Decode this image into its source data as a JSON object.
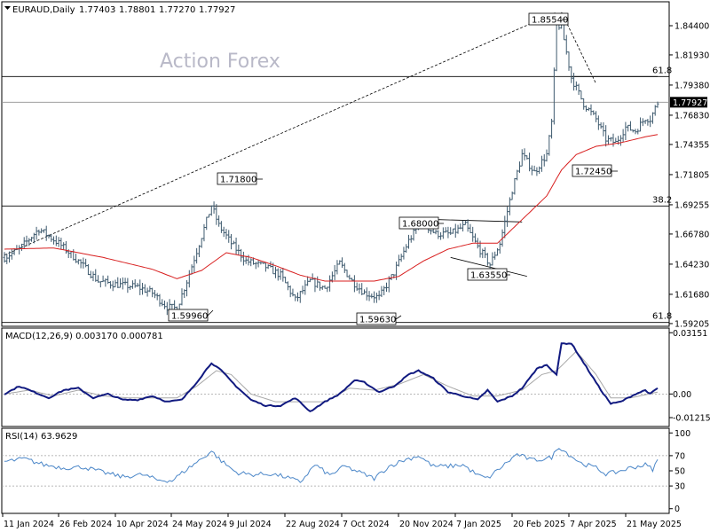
{
  "chart_data": [
    {
      "type": "ohlc",
      "title": "EURAUD,Daily",
      "ohlc_header": [
        "1.77403",
        "1.78801",
        "1.77270",
        "1.77927"
      ],
      "watermark": "Action Forex",
      "last_price": "1.77927",
      "ylim": [
        1.5905,
        1.8635
      ],
      "y_ticks": [
        "1.84400",
        "1.81930",
        "1.79380",
        "1.76830",
        "1.74355",
        "1.71805",
        "1.69255",
        "1.66780",
        "1.64230",
        "1.61680",
        "1.59205"
      ],
      "x_ticks": [
        "11 Jan 2024",
        "26 Feb 2024",
        "10 Apr 2024",
        "24 May 2024",
        "9 Jul 2024",
        "22 Aug 2024",
        "7 Oct 2024",
        "20 Nov 2024",
        "7 Jan 2025",
        "20 Feb 2025",
        "7 Apr 2025",
        "21 May 2025"
      ],
      "fib_levels": [
        {
          "label": "61.8",
          "value": 1.801
        },
        {
          "label": "38.2",
          "value": 1.6915
        },
        {
          "label": "61.8",
          "value": 1.593
        }
      ],
      "price_labels": [
        {
          "text": "1.85540",
          "value": 1.8554
        },
        {
          "text": "1.71800",
          "value": 1.718
        },
        {
          "text": "1.68000",
          "value": 1.68
        },
        {
          "text": "1.63550",
          "value": 1.6355
        },
        {
          "text": "1.59960",
          "value": 1.5996
        },
        {
          "text": "1.59630",
          "value": 1.5963
        },
        {
          "text": "1.72450",
          "value": 1.7245
        }
      ],
      "anchors": [
        [
          0,
          1.648
        ],
        [
          6,
          1.655
        ],
        [
          14,
          1.672
        ],
        [
          22,
          1.66
        ],
        [
          30,
          1.645
        ],
        [
          38,
          1.628
        ],
        [
          46,
          1.625
        ],
        [
          54,
          1.623
        ],
        [
          60,
          1.618
        ],
        [
          66,
          1.606
        ],
        [
          70,
          1.605
        ],
        [
          74,
          1.628
        ],
        [
          80,
          1.666
        ],
        [
          84,
          1.692
        ],
        [
          87,
          1.675
        ],
        [
          92,
          1.66
        ],
        [
          98,
          1.645
        ],
        [
          106,
          1.64
        ],
        [
          112,
          1.633
        ],
        [
          118,
          1.612
        ],
        [
          124,
          1.628
        ],
        [
          130,
          1.622
        ],
        [
          136,
          1.643
        ],
        [
          141,
          1.628
        ],
        [
          146,
          1.618
        ],
        [
          152,
          1.614
        ],
        [
          158,
          1.635
        ],
        [
          164,
          1.662
        ],
        [
          169,
          1.678
        ],
        [
          175,
          1.668
        ],
        [
          181,
          1.668
        ],
        [
          187,
          1.675
        ],
        [
          192,
          1.657
        ],
        [
          197,
          1.642
        ],
        [
          201,
          1.66
        ],
        [
          206,
          1.705
        ],
        [
          210,
          1.735
        ],
        [
          215,
          1.72
        ],
        [
          220,
          1.735
        ],
        [
          222,
          1.762
        ],
        [
          224,
          1.845
        ],
        [
          226,
          1.843
        ],
        [
          230,
          1.8
        ],
        [
          235,
          1.778
        ],
        [
          240,
          1.765
        ],
        [
          244,
          1.748
        ],
        [
          248,
          1.745
        ],
        [
          252,
          1.758
        ],
        [
          256,
          1.755
        ],
        [
          260,
          1.766
        ],
        [
          262,
          1.765
        ],
        [
          265,
          1.779
        ]
      ],
      "ma_anchors": [
        [
          0,
          1.655
        ],
        [
          20,
          1.656
        ],
        [
          40,
          1.648
        ],
        [
          60,
          1.638
        ],
        [
          70,
          1.63
        ],
        [
          80,
          1.637
        ],
        [
          90,
          1.652
        ],
        [
          100,
          1.648
        ],
        [
          110,
          1.641
        ],
        [
          120,
          1.633
        ],
        [
          130,
          1.628
        ],
        [
          140,
          1.628
        ],
        [
          150,
          1.628
        ],
        [
          160,
          1.632
        ],
        [
          170,
          1.645
        ],
        [
          180,
          1.655
        ],
        [
          190,
          1.66
        ],
        [
          200,
          1.66
        ],
        [
          210,
          1.68
        ],
        [
          220,
          1.7
        ],
        [
          226,
          1.722
        ],
        [
          232,
          1.735
        ],
        [
          240,
          1.742
        ],
        [
          250,
          1.745
        ],
        [
          260,
          1.75
        ],
        [
          265,
          1.752
        ]
      ]
    },
    {
      "type": "line",
      "title": "MACD(12,26,9) 0.003170 0.000781",
      "ylim": [
        -0.01625,
        0.03345
      ],
      "y_ticks": [
        "0.03151",
        "0.00",
        "-0.01215"
      ],
      "macd_anchors": [
        [
          0,
          0.0
        ],
        [
          6,
          0.004
        ],
        [
          12,
          0.001
        ],
        [
          18,
          -0.002
        ],
        [
          24,
          0.002
        ],
        [
          30,
          0.003
        ],
        [
          36,
          -0.002
        ],
        [
          42,
          0.0
        ],
        [
          48,
          -0.003
        ],
        [
          54,
          -0.003
        ],
        [
          60,
          -0.001
        ],
        [
          66,
          -0.004
        ],
        [
          72,
          -0.003
        ],
        [
          78,
          0.006
        ],
        [
          84,
          0.016
        ],
        [
          88,
          0.012
        ],
        [
          94,
          0.004
        ],
        [
          100,
          -0.003
        ],
        [
          106,
          -0.006
        ],
        [
          112,
          -0.006
        ],
        [
          118,
          -0.002
        ],
        [
          124,
          -0.009
        ],
        [
          130,
          -0.004
        ],
        [
          136,
          0.0
        ],
        [
          142,
          0.007
        ],
        [
          146,
          0.006
        ],
        [
          152,
          0.001
        ],
        [
          158,
          0.004
        ],
        [
          164,
          0.01
        ],
        [
          168,
          0.012
        ],
        [
          174,
          0.008
        ],
        [
          180,
          0.001
        ],
        [
          186,
          -0.001
        ],
        [
          192,
          -0.003
        ],
        [
          196,
          0.002
        ],
        [
          200,
          -0.004
        ],
        [
          206,
          -0.001
        ],
        [
          210,
          0.003
        ],
        [
          216,
          0.013
        ],
        [
          220,
          0.015
        ],
        [
          224,
          0.01
        ],
        [
          226,
          0.026
        ],
        [
          230,
          0.026
        ],
        [
          236,
          0.014
        ],
        [
          242,
          0.002
        ],
        [
          246,
          -0.005
        ],
        [
          250,
          -0.004
        ],
        [
          256,
          0.0
        ],
        [
          260,
          0.002
        ],
        [
          262,
          0.0
        ],
        [
          265,
          0.003
        ]
      ],
      "signal_anchors": [
        [
          0,
          0.0
        ],
        [
          10,
          0.002
        ],
        [
          20,
          -0.001
        ],
        [
          30,
          0.002
        ],
        [
          40,
          -0.001
        ],
        [
          50,
          -0.002
        ],
        [
          60,
          -0.002
        ],
        [
          70,
          -0.002
        ],
        [
          78,
          0.004
        ],
        [
          86,
          0.012
        ],
        [
          92,
          0.01
        ],
        [
          100,
          0.0
        ],
        [
          110,
          -0.004
        ],
        [
          120,
          -0.004
        ],
        [
          130,
          -0.004
        ],
        [
          140,
          0.003
        ],
        [
          150,
          0.002
        ],
        [
          160,
          0.005
        ],
        [
          170,
          0.01
        ],
        [
          180,
          0.004
        ],
        [
          190,
          -0.001
        ],
        [
          200,
          -0.001
        ],
        [
          210,
          0.002
        ],
        [
          218,
          0.01
        ],
        [
          224,
          0.012
        ],
        [
          232,
          0.022
        ],
        [
          240,
          0.01
        ],
        [
          246,
          -0.002
        ],
        [
          254,
          -0.002
        ],
        [
          265,
          0.001
        ]
      ]
    },
    {
      "type": "line",
      "title": "RSI(14) 63.9629",
      "ylim": [
        0,
        100
      ],
      "y_ticks": [
        "100",
        "70",
        "50",
        "30",
        "0"
      ],
      "rsi_anchors": [
        [
          0,
          62
        ],
        [
          8,
          66
        ],
        [
          16,
          58
        ],
        [
          24,
          54
        ],
        [
          32,
          55
        ],
        [
          40,
          48
        ],
        [
          48,
          42
        ],
        [
          56,
          45
        ],
        [
          62,
          38
        ],
        [
          68,
          37
        ],
        [
          74,
          52
        ],
        [
          80,
          66
        ],
        [
          84,
          76
        ],
        [
          88,
          63
        ],
        [
          94,
          48
        ],
        [
          100,
          45
        ],
        [
          108,
          46
        ],
        [
          114,
          42
        ],
        [
          120,
          35
        ],
        [
          126,
          58
        ],
        [
          132,
          44
        ],
        [
          138,
          56
        ],
        [
          144,
          48
        ],
        [
          150,
          40
        ],
        [
          156,
          56
        ],
        [
          162,
          64
        ],
        [
          168,
          70
        ],
        [
          174,
          56
        ],
        [
          180,
          56
        ],
        [
          186,
          58
        ],
        [
          192,
          44
        ],
        [
          196,
          40
        ],
        [
          202,
          56
        ],
        [
          208,
          72
        ],
        [
          214,
          64
        ],
        [
          220,
          66
        ],
        [
          222,
          68
        ],
        [
          225,
          82
        ],
        [
          228,
          74
        ],
        [
          234,
          60
        ],
        [
          240,
          54
        ],
        [
          244,
          46
        ],
        [
          248,
          48
        ],
        [
          254,
          54
        ],
        [
          260,
          58
        ],
        [
          263,
          52
        ],
        [
          265,
          64
        ]
      ]
    }
  ]
}
